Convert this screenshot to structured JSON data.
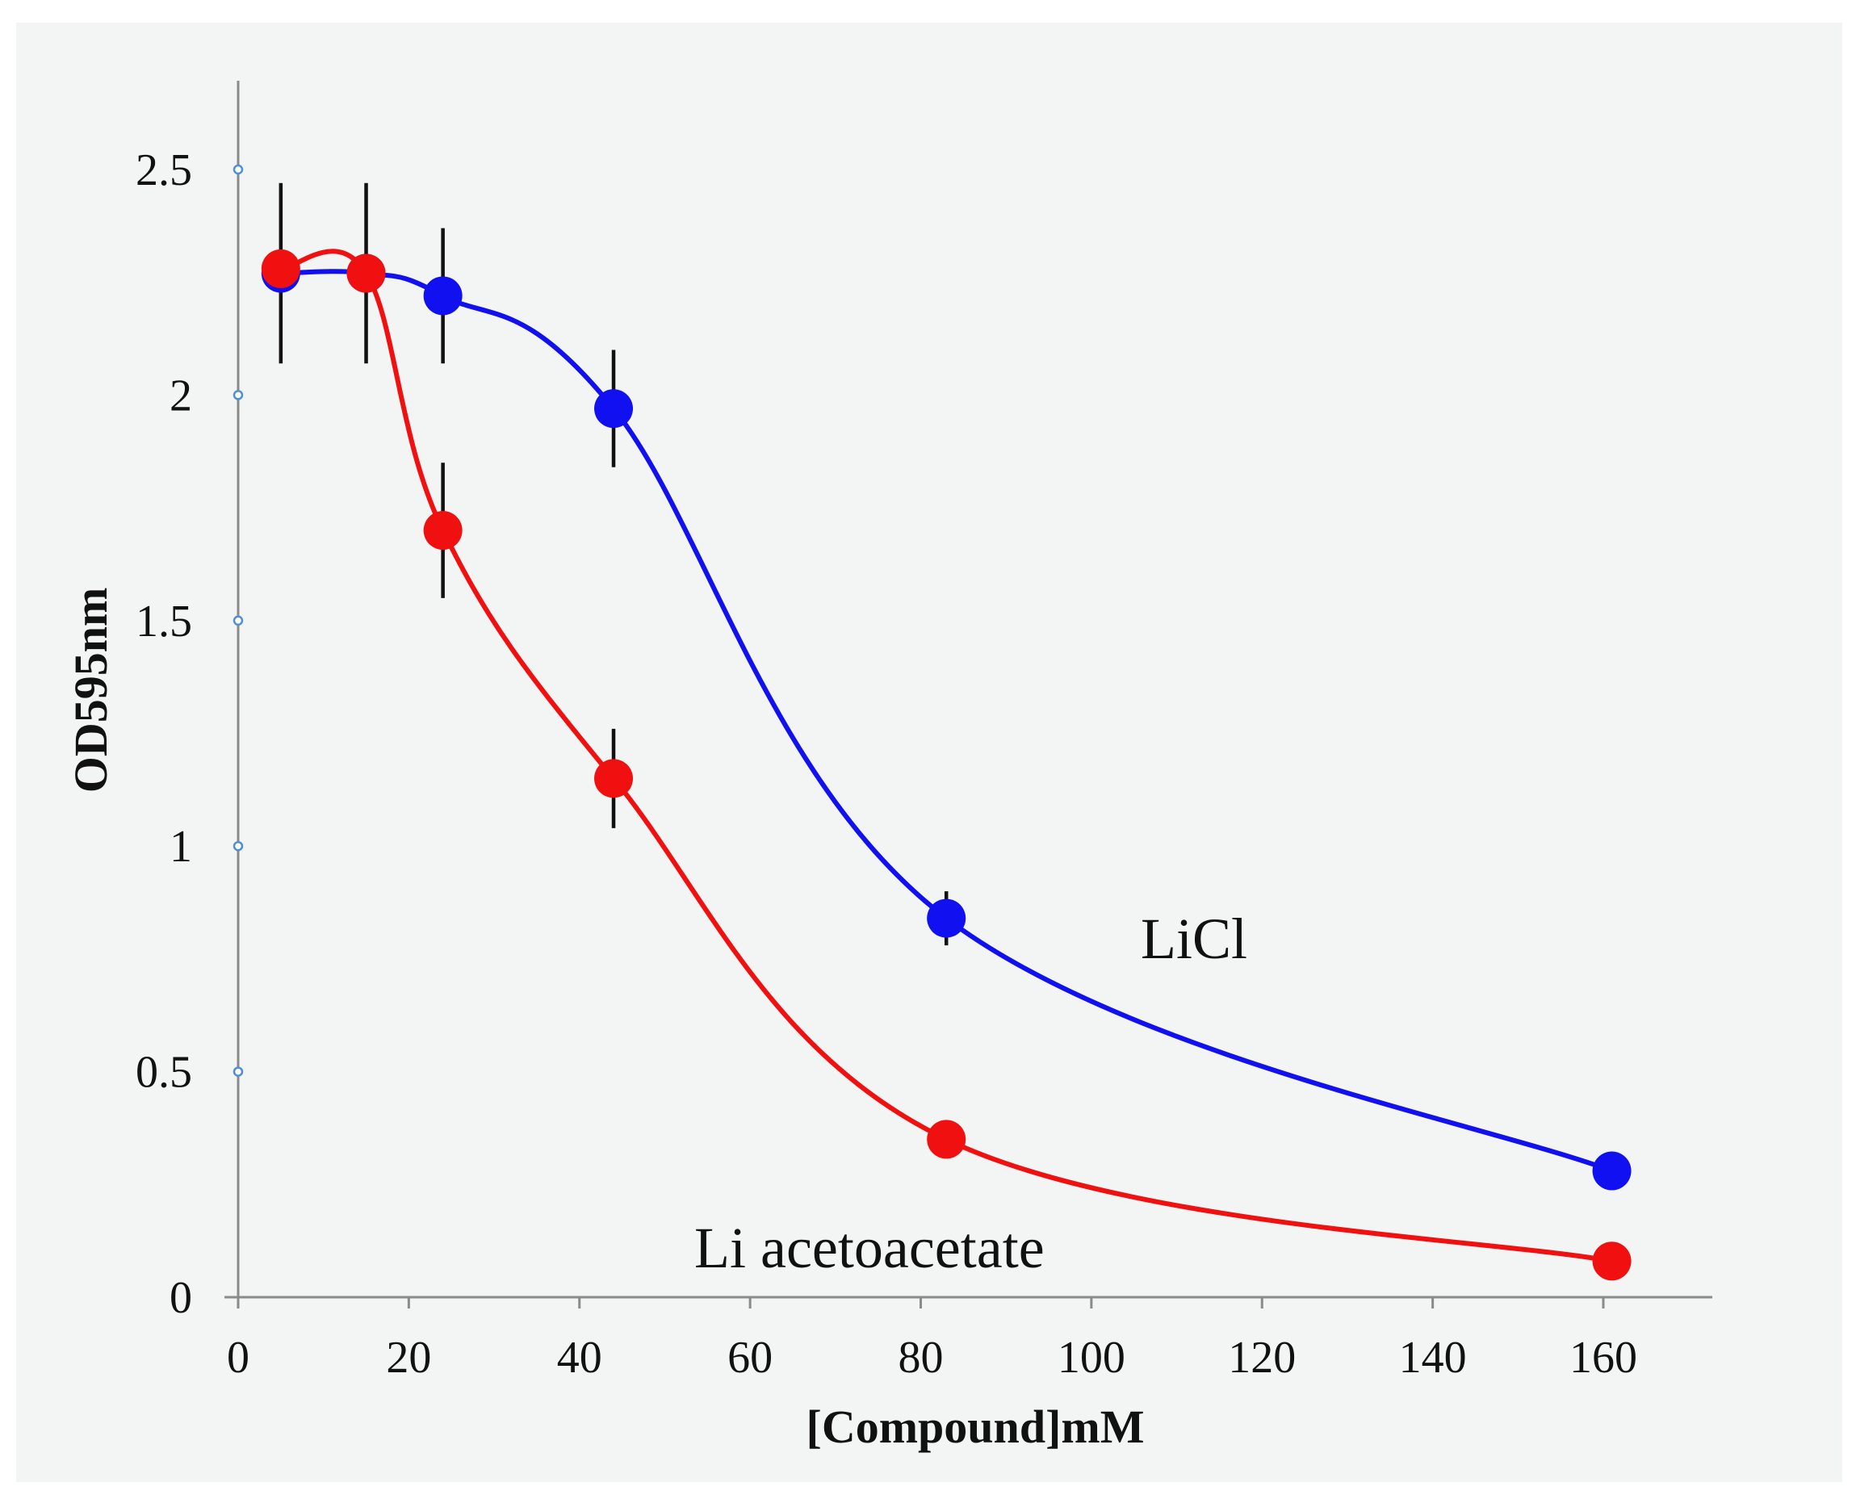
{
  "chart_data": {
    "type": "line",
    "title": "",
    "xlabel": "[Compound]mM",
    "ylabel": "OD595nm",
    "xlim": [
      0,
      170
    ],
    "ylim": [
      0,
      2.7
    ],
    "x_ticks": [
      0,
      20,
      40,
      60,
      80,
      100,
      120,
      140,
      160
    ],
    "x_tick_labels": [
      "0",
      "20",
      "40",
      "60",
      "80",
      "100",
      "120",
      "140",
      "160"
    ],
    "y_ticks": [
      0,
      0.5,
      1,
      1.5,
      2,
      2.5
    ],
    "y_tick_labels": [
      "0",
      "0.5",
      "1",
      "1.5",
      "2",
      "2.5"
    ],
    "grid": false,
    "series": [
      {
        "name": "LiCl",
        "color": "#1010f0",
        "x": [
          5,
          15,
          24,
          44,
          83,
          161
        ],
        "values": [
          2.27,
          2.27,
          2.22,
          1.97,
          0.84,
          0.28
        ],
        "error": [
          0.2,
          0.2,
          0.15,
          0.13,
          0.06,
          0.0
        ]
      },
      {
        "name": "Li acetoacetate",
        "color": "#f01010",
        "x": [
          5,
          15,
          24,
          44,
          83,
          161
        ],
        "values": [
          2.28,
          2.27,
          1.7,
          1.15,
          0.35,
          0.08
        ],
        "error": [
          0.0,
          0.0,
          0.15,
          0.11,
          0.0,
          0.0
        ]
      }
    ]
  }
}
